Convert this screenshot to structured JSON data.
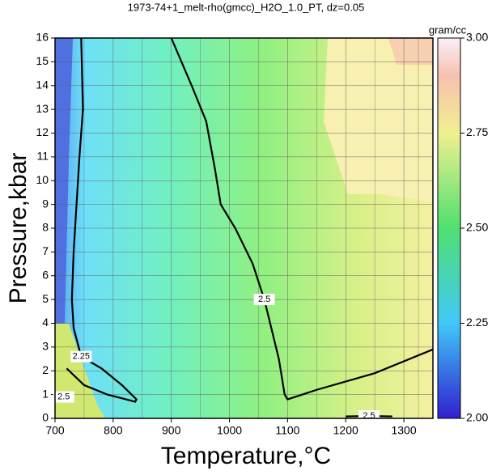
{
  "chart_data": {
    "type": "contour",
    "title": "1973-74+1_melt-rho(gmcc)_H2O_1.0_PT, dz=0.05",
    "xlabel": "Temperature,°C",
    "ylabel": "Pressure,kbar",
    "xlim": [
      700,
      1350
    ],
    "xticks": [
      700,
      800,
      900,
      1000,
      1100,
      1200,
      1300
    ],
    "ylim": [
      0,
      16
    ],
    "yticks": [
      0,
      1,
      2,
      3,
      4,
      5,
      6,
      7,
      8,
      9,
      10,
      11,
      12,
      13,
      14,
      15,
      16
    ],
    "grid": true,
    "colorbar": {
      "label": "gram/cc",
      "lim": [
        2,
        3
      ],
      "ticks": [
        {
          "value": 2,
          "label": "2.00"
        },
        {
          "value": 2.25,
          "label": "2.25"
        },
        {
          "value": 2.5,
          "label": "2.50"
        },
        {
          "value": 2.75,
          "label": "2.75"
        },
        {
          "value": 3,
          "label": "3.00"
        }
      ]
    },
    "contours": [
      {
        "level": 2.25,
        "label": "2.25",
        "x": [
          745,
          748,
          742,
          737,
          732,
          729,
          732,
          745,
          780,
          815,
          840,
          838,
          790,
          750,
          720
        ],
        "y": [
          16,
          13,
          11,
          9,
          7,
          5,
          3.8,
          2.6,
          2.1,
          1.4,
          0.8,
          0.7,
          1.0,
          1.4,
          2.1
        ]
      },
      {
        "level": 2.5,
        "label": "2.5",
        "x": [
          900,
          935,
          960,
          975,
          985,
          1010,
          1040,
          1060,
          1075,
          1085,
          1095,
          1100,
          1150,
          1250,
          1350
        ],
        "y": [
          16,
          14,
          12.5,
          10.5,
          9,
          8,
          6.5,
          5,
          3.5,
          2.5,
          1,
          0.8,
          1.2,
          1.9,
          2.9
        ]
      },
      {
        "level": 2.5,
        "label": "2.5",
        "x": [
          702,
          715,
          730
        ],
        "y": [
          1.1,
          0.9,
          0.7
        ]
      },
      {
        "level": 2.5,
        "label": "2.5",
        "x": [
          1200,
          1240,
          1280
        ],
        "y": [
          0.08,
          0.1,
          0.08
        ]
      }
    ]
  }
}
